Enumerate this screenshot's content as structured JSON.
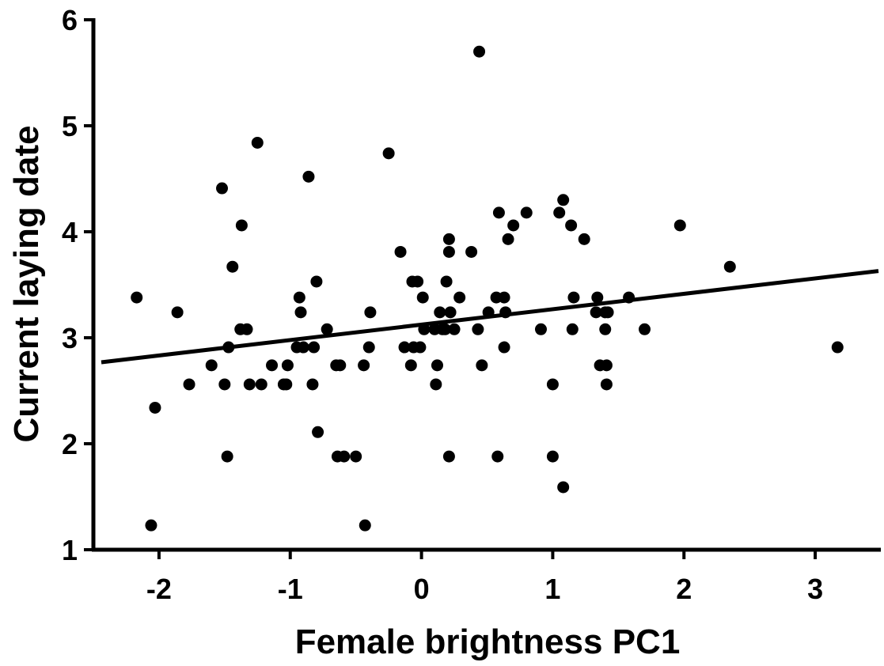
{
  "chart_data": {
    "type": "scatter",
    "title": "",
    "xlabel": "Female brightness PC1",
    "ylabel": "Current laying date",
    "xlim": [
      -2.5,
      3.5
    ],
    "ylim": [
      1,
      6
    ],
    "xticks": [
      -2,
      -1,
      0,
      1,
      2,
      3
    ],
    "yticks": [
      1,
      2,
      3,
      4,
      5,
      6
    ],
    "grid": false,
    "legend": "none",
    "points": [
      {
        "x": -2.17,
        "y": 3.38
      },
      {
        "x": -2.06,
        "y": 1.23
      },
      {
        "x": -2.03,
        "y": 2.34
      },
      {
        "x": -1.86,
        "y": 3.24
      },
      {
        "x": -1.77,
        "y": 2.56
      },
      {
        "x": -1.6,
        "y": 2.74
      },
      {
        "x": -1.52,
        "y": 4.41
      },
      {
        "x": -1.5,
        "y": 2.56
      },
      {
        "x": -1.48,
        "y": 1.88
      },
      {
        "x": -1.47,
        "y": 2.91
      },
      {
        "x": -1.44,
        "y": 3.67
      },
      {
        "x": -1.38,
        "y": 3.08
      },
      {
        "x": -1.37,
        "y": 4.06
      },
      {
        "x": -1.33,
        "y": 3.08
      },
      {
        "x": -1.31,
        "y": 2.56
      },
      {
        "x": -1.25,
        "y": 4.84
      },
      {
        "x": -1.22,
        "y": 2.56
      },
      {
        "x": -1.14,
        "y": 2.74
      },
      {
        "x": -1.05,
        "y": 2.56
      },
      {
        "x": -1.03,
        "y": 2.56
      },
      {
        "x": -1.02,
        "y": 2.74
      },
      {
        "x": -0.95,
        "y": 2.91
      },
      {
        "x": -0.93,
        "y": 3.38
      },
      {
        "x": -0.92,
        "y": 3.24
      },
      {
        "x": -0.9,
        "y": 2.91
      },
      {
        "x": -0.86,
        "y": 4.52
      },
      {
        "x": -0.83,
        "y": 2.56
      },
      {
        "x": -0.82,
        "y": 2.91
      },
      {
        "x": -0.8,
        "y": 3.53
      },
      {
        "x": -0.79,
        "y": 2.11
      },
      {
        "x": -0.72,
        "y": 3.08
      },
      {
        "x": -0.65,
        "y": 2.74
      },
      {
        "x": -0.64,
        "y": 1.88
      },
      {
        "x": -0.62,
        "y": 2.74
      },
      {
        "x": -0.59,
        "y": 1.88
      },
      {
        "x": -0.5,
        "y": 1.88
      },
      {
        "x": -0.44,
        "y": 2.74
      },
      {
        "x": -0.43,
        "y": 1.23
      },
      {
        "x": -0.4,
        "y": 2.91
      },
      {
        "x": -0.39,
        "y": 3.24
      },
      {
        "x": -0.25,
        "y": 4.74
      },
      {
        "x": -0.16,
        "y": 3.81
      },
      {
        "x": -0.13,
        "y": 2.91
      },
      {
        "x": -0.08,
        "y": 2.74
      },
      {
        "x": -0.07,
        "y": 3.53
      },
      {
        "x": -0.06,
        "y": 2.91
      },
      {
        "x": -0.03,
        "y": 3.53
      },
      {
        "x": -0.01,
        "y": 2.91
      },
      {
        "x": 0.01,
        "y": 3.38
      },
      {
        "x": 0.02,
        "y": 3.08
      },
      {
        "x": 0.1,
        "y": 3.08
      },
      {
        "x": 0.11,
        "y": 2.56
      },
      {
        "x": 0.12,
        "y": 2.74
      },
      {
        "x": 0.14,
        "y": 3.24
      },
      {
        "x": 0.16,
        "y": 3.08
      },
      {
        "x": 0.18,
        "y": 3.08
      },
      {
        "x": 0.19,
        "y": 3.53
      },
      {
        "x": 0.21,
        "y": 3.93
      },
      {
        "x": 0.21,
        "y": 3.81
      },
      {
        "x": 0.22,
        "y": 3.24
      },
      {
        "x": 0.21,
        "y": 1.88
      },
      {
        "x": 0.25,
        "y": 3.08
      },
      {
        "x": 0.29,
        "y": 3.38
      },
      {
        "x": 0.38,
        "y": 3.81
      },
      {
        "x": 0.43,
        "y": 3.08
      },
      {
        "x": 0.44,
        "y": 5.7
      },
      {
        "x": 0.46,
        "y": 2.74
      },
      {
        "x": 0.51,
        "y": 3.24
      },
      {
        "x": 0.57,
        "y": 3.38
      },
      {
        "x": 0.58,
        "y": 1.88
      },
      {
        "x": 0.59,
        "y": 4.18
      },
      {
        "x": 0.63,
        "y": 3.38
      },
      {
        "x": 0.63,
        "y": 2.91
      },
      {
        "x": 0.64,
        "y": 3.24
      },
      {
        "x": 0.66,
        "y": 3.93
      },
      {
        "x": 0.7,
        "y": 4.06
      },
      {
        "x": 0.8,
        "y": 4.18
      },
      {
        "x": 0.91,
        "y": 3.08
      },
      {
        "x": 1.0,
        "y": 2.56
      },
      {
        "x": 1.0,
        "y": 1.88
      },
      {
        "x": 1.05,
        "y": 4.18
      },
      {
        "x": 1.08,
        "y": 4.3
      },
      {
        "x": 1.08,
        "y": 1.59
      },
      {
        "x": 1.14,
        "y": 4.06
      },
      {
        "x": 1.15,
        "y": 3.08
      },
      {
        "x": 1.16,
        "y": 3.38
      },
      {
        "x": 1.24,
        "y": 3.93
      },
      {
        "x": 1.33,
        "y": 3.24
      },
      {
        "x": 1.34,
        "y": 3.38
      },
      {
        "x": 1.36,
        "y": 2.74
      },
      {
        "x": 1.4,
        "y": 3.24
      },
      {
        "x": 1.4,
        "y": 3.08
      },
      {
        "x": 1.41,
        "y": 2.74
      },
      {
        "x": 1.41,
        "y": 2.56
      },
      {
        "x": 1.42,
        "y": 3.24
      },
      {
        "x": 1.58,
        "y": 3.38
      },
      {
        "x": 1.7,
        "y": 3.08
      },
      {
        "x": 1.97,
        "y": 4.06
      },
      {
        "x": 2.35,
        "y": 3.67
      },
      {
        "x": 3.17,
        "y": 2.91
      }
    ],
    "trendline": {
      "x1": -2.5,
      "y1": 2.76,
      "x2": 3.5,
      "y2": 3.63
    }
  }
}
